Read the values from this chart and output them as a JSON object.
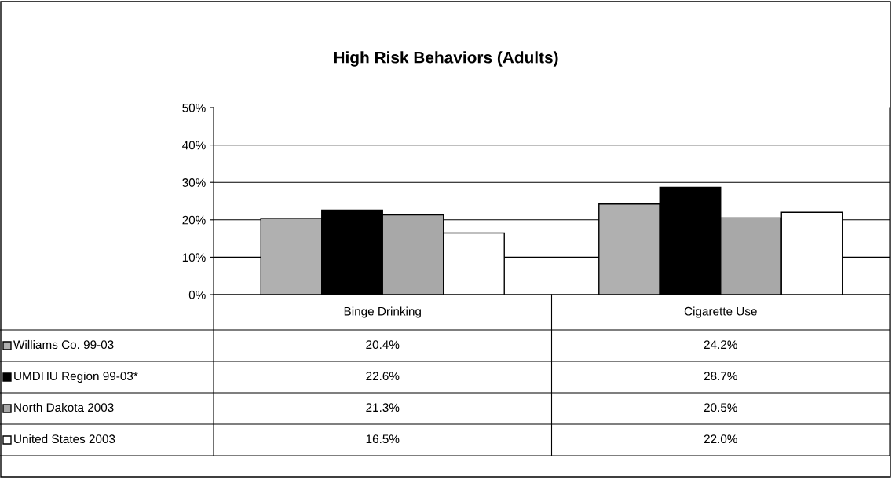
{
  "chart_data": {
    "type": "bar",
    "title": "High Risk Behaviors (Adults)",
    "categories": [
      "Binge Drinking",
      "Cigarette Use"
    ],
    "series": [
      {
        "name": "Williams Co. 99-03",
        "color": "#b0b0b0",
        "values": [
          20.4,
          24.2
        ],
        "value_labels": [
          "20.4%",
          "24.2%"
        ]
      },
      {
        "name": "UMDHU Region 99-03*",
        "color": "#000000",
        "values": [
          22.6,
          28.7
        ],
        "value_labels": [
          "22.6%",
          "28.7%"
        ]
      },
      {
        "name": "North Dakota 2003",
        "color": "#a8a8a8",
        "values": [
          21.3,
          20.5
        ],
        "value_labels": [
          "21.3%",
          "20.5%"
        ]
      },
      {
        "name": "United States 2003",
        "color": "#ffffff",
        "values": [
          16.5,
          22.0
        ],
        "value_labels": [
          "16.5%",
          "22.0%"
        ]
      }
    ],
    "ylim": [
      0,
      50
    ],
    "yticks": [
      {
        "value": 0,
        "label": "0%"
      },
      {
        "value": 10,
        "label": "10%"
      },
      {
        "value": 20,
        "label": "20%"
      },
      {
        "value": 30,
        "label": "30%"
      },
      {
        "value": 40,
        "label": "40%"
      },
      {
        "value": 50,
        "label": "50%"
      }
    ],
    "grid": "y",
    "legend": "bottom left"
  }
}
